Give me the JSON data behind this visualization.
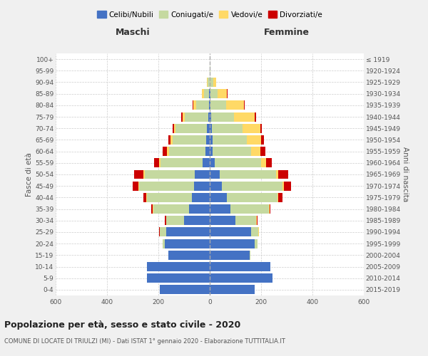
{
  "age_groups": [
    "0-4",
    "5-9",
    "10-14",
    "15-19",
    "20-24",
    "25-29",
    "30-34",
    "35-39",
    "40-44",
    "45-49",
    "50-54",
    "55-59",
    "60-64",
    "65-69",
    "70-74",
    "75-79",
    "80-84",
    "85-89",
    "90-94",
    "95-99",
    "100+"
  ],
  "birth_years": [
    "2015-2019",
    "2010-2014",
    "2005-2009",
    "2000-2004",
    "1995-1999",
    "1990-1994",
    "1985-1989",
    "1980-1984",
    "1975-1979",
    "1970-1974",
    "1965-1969",
    "1960-1964",
    "1955-1959",
    "1950-1954",
    "1945-1949",
    "1940-1944",
    "1935-1939",
    "1930-1934",
    "1925-1929",
    "1920-1924",
    "≤ 1919"
  ],
  "male": {
    "celibi": [
      195,
      245,
      245,
      160,
      175,
      170,
      100,
      80,
      70,
      60,
      58,
      28,
      18,
      14,
      12,
      6,
      4,
      2,
      1,
      0,
      0
    ],
    "coniugati": [
      0,
      0,
      0,
      2,
      8,
      25,
      70,
      140,
      175,
      215,
      195,
      165,
      140,
      130,
      120,
      90,
      48,
      20,
      6,
      1,
      0
    ],
    "vedovi": [
      0,
      0,
      0,
      0,
      0,
      0,
      0,
      1,
      2,
      4,
      4,
      5,
      8,
      10,
      8,
      10,
      12,
      8,
      3,
      0,
      0
    ],
    "divorziati": [
      0,
      0,
      0,
      0,
      1,
      2,
      5,
      8,
      12,
      22,
      38,
      18,
      18,
      8,
      5,
      4,
      2,
      0,
      0,
      0,
      0
    ]
  },
  "female": {
    "nubili": [
      175,
      245,
      235,
      155,
      175,
      160,
      100,
      80,
      68,
      48,
      38,
      20,
      12,
      10,
      8,
      5,
      4,
      2,
      1,
      0,
      0
    ],
    "coniugate": [
      0,
      0,
      0,
      2,
      10,
      30,
      80,
      150,
      195,
      235,
      220,
      180,
      150,
      135,
      120,
      90,
      60,
      28,
      12,
      2,
      0
    ],
    "vedove": [
      0,
      0,
      0,
      0,
      0,
      1,
      2,
      2,
      4,
      5,
      8,
      20,
      35,
      55,
      70,
      80,
      68,
      38,
      12,
      2,
      0
    ],
    "divorziate": [
      0,
      0,
      0,
      0,
      2,
      2,
      5,
      5,
      15,
      30,
      40,
      22,
      20,
      10,
      5,
      5,
      4,
      2,
      0,
      0,
      0
    ]
  },
  "colors": {
    "celibi": "#4472c4",
    "coniugati": "#c5d9a0",
    "vedovi": "#ffd966",
    "divorziati": "#cc0000"
  },
  "title": "Popolazione per età, sesso e stato civile - 2020",
  "subtitle": "COMUNE DI LOCATE DI TRIULZI (MI) - Dati ISTAT 1° gennaio 2020 - Elaborazione TUTTITALIA.IT",
  "xlabel_left": "Maschi",
  "xlabel_right": "Femmine",
  "ylabel_left": "Fasce di età",
  "ylabel_right": "Anni di nascita",
  "xlim": 600,
  "legend_labels": [
    "Celibi/Nubili",
    "Coniugati/e",
    "Vedovi/e",
    "Divorziati/e"
  ],
  "bg_color": "#f0f0f0",
  "plot_bg_color": "#ffffff",
  "grid_color": "#cccccc"
}
